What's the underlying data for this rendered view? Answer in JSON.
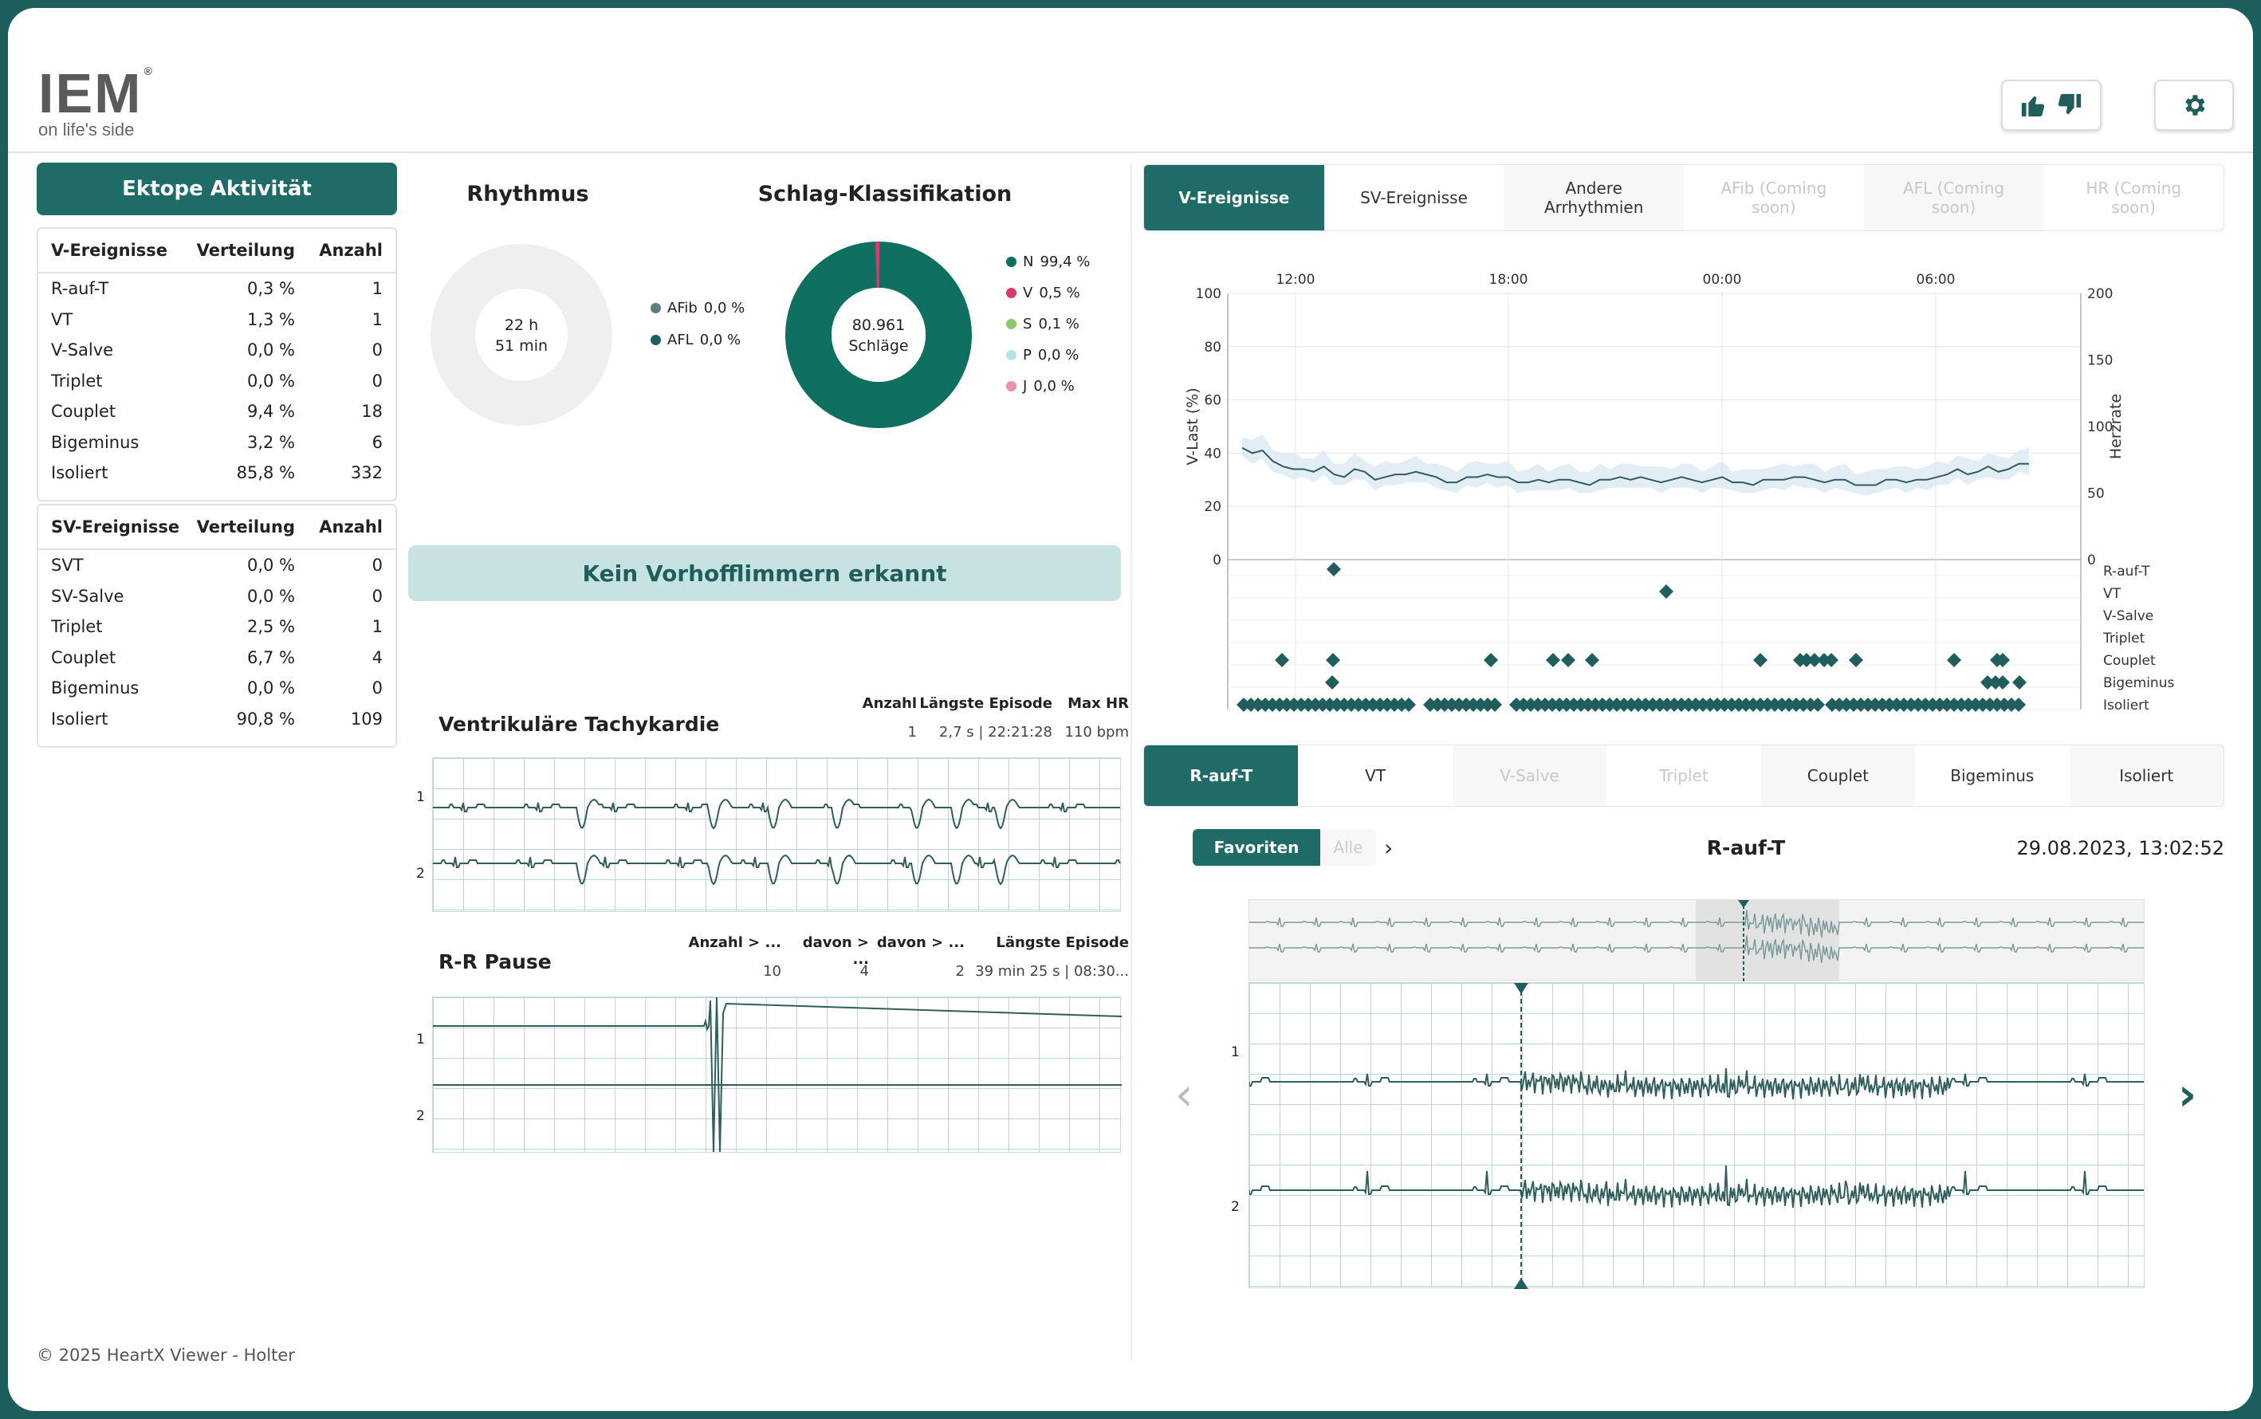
{
  "brand": {
    "logo": "IEM",
    "tagline": "on life's side"
  },
  "header": {
    "feedback_icon": "thumbs-up-down-icon",
    "settings_icon": "gear-icon"
  },
  "ectopy": {
    "title": "Ektope Aktivität",
    "v_table": {
      "headers": [
        "V-Ereignisse",
        "Verteilung",
        "Anzahl"
      ],
      "rows": [
        [
          "R-auf-T",
          "0,3 %",
          "1"
        ],
        [
          "VT",
          "1,3 %",
          "1"
        ],
        [
          "V-Salve",
          "0,0 %",
          "0"
        ],
        [
          "Triplet",
          "0,0 %",
          "0"
        ],
        [
          "Couplet",
          "9,4 %",
          "18"
        ],
        [
          "Bigeminus",
          "3,2 %",
          "6"
        ],
        [
          "Isoliert",
          "85,8 %",
          "332"
        ]
      ]
    },
    "sv_table": {
      "headers": [
        "SV-Ereignisse",
        "Verteilung",
        "Anzahl"
      ],
      "rows": [
        [
          "SVT",
          "0,0 %",
          "0"
        ],
        [
          "SV-Salve",
          "0,0 %",
          "0"
        ],
        [
          "Triplet",
          "2,5 %",
          "1"
        ],
        [
          "Couplet",
          "6,7 %",
          "4"
        ],
        [
          "Bigeminus",
          "0,0 %",
          "0"
        ],
        [
          "Isoliert",
          "90,8 %",
          "109"
        ]
      ]
    }
  },
  "rhythm": {
    "title": "Rhythmus",
    "center_line1": "22 h",
    "center_line2": "51 min",
    "legend": [
      {
        "label": "AFib",
        "value": "0,0 %",
        "color": "#5f7f7e"
      },
      {
        "label": "AFL",
        "value": "0,0 %",
        "color": "#1f5e5c"
      }
    ]
  },
  "beat_class": {
    "title": "Schlag-Klassifikation",
    "center_line1": "80.961",
    "center_line2": "Schläge",
    "legend": [
      {
        "label": "N",
        "value": "99,4 %",
        "color": "#0f7062"
      },
      {
        "label": "V",
        "value": "0,5 %",
        "color": "#d63b6a"
      },
      {
        "label": "S",
        "value": "0,1 %",
        "color": "#8cc66a"
      },
      {
        "label": "P",
        "value": "0,0 %",
        "color": "#b6e3e2"
      },
      {
        "label": "J",
        "value": "0,0 %",
        "color": "#f090b0"
      }
    ]
  },
  "afib_banner": "Kein Vorhofflimmern erkannt",
  "vt": {
    "title": "Ventrikuläre Tachykardie",
    "headers": [
      "Anzahl",
      "Längste Episode",
      "Max HR"
    ],
    "values": [
      "1",
      "2,7 s | 22:21:28",
      "110 bpm"
    ],
    "leads": [
      "1",
      "2"
    ]
  },
  "rr": {
    "title": "R-R Pause",
    "headers": [
      "Anzahl > ...",
      "davon > ...",
      "davon > ...",
      "Längste Episode"
    ],
    "values": [
      "10",
      "4",
      "2",
      "39 min 25 s | 08:30..."
    ],
    "leads": [
      "1",
      "2"
    ]
  },
  "footer": "© 2025 HeartX Viewer - Holter",
  "event_tabs": [
    {
      "label": "V-Ereignisse",
      "state": "active"
    },
    {
      "label": "SV-Ereignisse",
      "state": "normal"
    },
    {
      "label": "Andere Arrhythmien",
      "state": "normal"
    },
    {
      "label": "AFib (Coming soon)",
      "state": "dim"
    },
    {
      "label": "AFL (Coming soon)",
      "state": "dim"
    },
    {
      "label": "HR (Coming soon)",
      "state": "dim"
    }
  ],
  "trend_chart": {
    "x_ticks": [
      "12:00",
      "18:00",
      "00:00",
      "06:00"
    ],
    "y_left_ticks": [
      "100",
      "80",
      "60",
      "40",
      "20",
      "0"
    ],
    "y_right_ticks": [
      "200",
      "150",
      "100",
      "50",
      "0"
    ],
    "y_left_label": "V-Last (%)",
    "y_right_label": "Herzrate",
    "event_rows": [
      "R-auf-T",
      "VT",
      "V-Salve",
      "Triplet",
      "Couplet",
      "Bigeminus",
      "Isoliert"
    ]
  },
  "type_tabs": [
    {
      "label": "R-auf-T",
      "state": "active"
    },
    {
      "label": "VT",
      "state": "normal"
    },
    {
      "label": "V-Salve",
      "state": "dim"
    },
    {
      "label": "Triplet",
      "state": "dim"
    },
    {
      "label": "Couplet",
      "state": "normal"
    },
    {
      "label": "Bigeminus",
      "state": "normal"
    },
    {
      "label": "Isoliert",
      "state": "normal"
    }
  ],
  "viewer": {
    "favorites": "Favoriten",
    "all": "Alle",
    "title": "R-auf-T",
    "timestamp": "29.08.2023, 13:02:52",
    "leads": [
      "1",
      "2"
    ]
  },
  "chart_data": {
    "type": "line",
    "x_ticks": [
      "12:00",
      "18:00",
      "00:00",
      "06:00"
    ],
    "ylim_left": [
      0,
      100
    ],
    "ylim_right": [
      0,
      200
    ],
    "series": [
      {
        "name": "V-Last (%)",
        "values": [
          42,
          40,
          41,
          37,
          35,
          34,
          34,
          33,
          35,
          32,
          31,
          34,
          33,
          30,
          31,
          32,
          32,
          33,
          32,
          31,
          29,
          29,
          31,
          31,
          32,
          31,
          31,
          29,
          29,
          30,
          29,
          30,
          30,
          29,
          28,
          30,
          30,
          31,
          30,
          31,
          30,
          29,
          30,
          31,
          30,
          29,
          30,
          31,
          29,
          29,
          28,
          30,
          30,
          30,
          31,
          31,
          30,
          29,
          30,
          30,
          28,
          28,
          28,
          30,
          30,
          29,
          30,
          30,
          31,
          32,
          34,
          32,
          33,
          35,
          33,
          34,
          36,
          36
        ]
      }
    ],
    "grid": true
  }
}
